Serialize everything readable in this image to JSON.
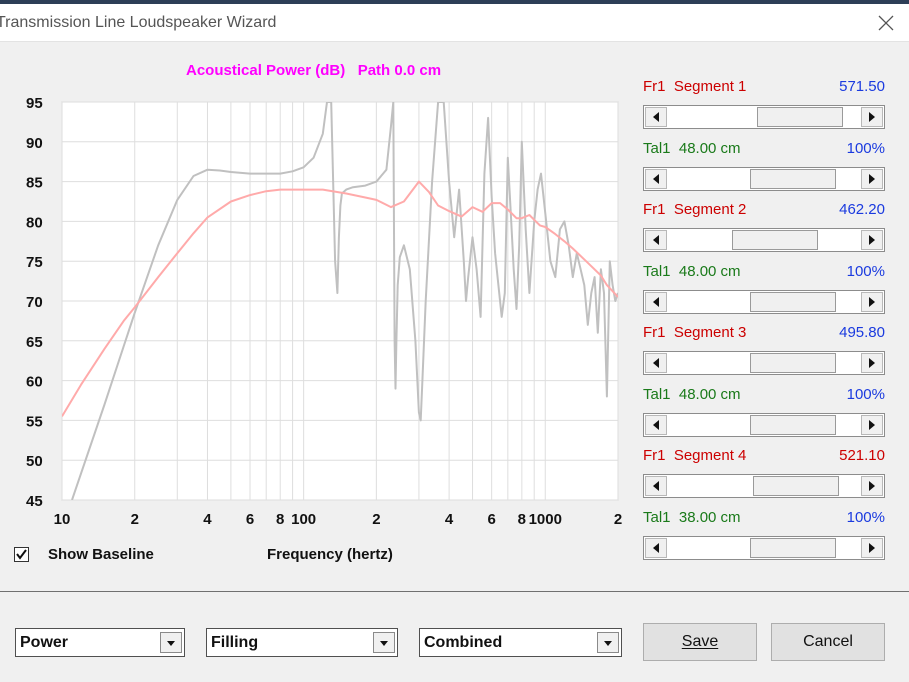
{
  "window": {
    "title": "Transmission Line Loudspeaker Wizard"
  },
  "chart_data": {
    "type": "line",
    "title": "Acoustical Power (dB)   Path 0.0 cm",
    "xlabel": "Frequency (hertz)",
    "ylabel": "",
    "x_scale": "log",
    "xlim": [
      10,
      2000
    ],
    "ylim": [
      45,
      95
    ],
    "x_tick_labels": [
      "10",
      "2",
      "4",
      "6",
      "8",
      "100",
      "2",
      "4",
      "6",
      "8",
      "1000",
      "2"
    ],
    "y_tick_labels": [
      "95",
      "90",
      "85",
      "80",
      "75",
      "70",
      "65",
      "60",
      "55",
      "50",
      "45"
    ],
    "grid": true,
    "series": [
      {
        "color": "#ffaaaa",
        "x": [
          10,
          12,
          15,
          18,
          20,
          25,
          30,
          35,
          40,
          50,
          60,
          70,
          80,
          90,
          100,
          120,
          150,
          180,
          200,
          230,
          260,
          300,
          330,
          360,
          400,
          450,
          500,
          550,
          600,
          650,
          700,
          760,
          800,
          860,
          900,
          950,
          1000,
          1100,
          1200,
          1300,
          1500,
          1700,
          1800,
          2000
        ],
        "y": [
          55.5,
          59.5,
          64,
          67.5,
          69.2,
          73,
          76,
          78.5,
          80.5,
          82.5,
          83.3,
          83.8,
          84,
          84,
          84,
          84,
          83.5,
          83,
          82.7,
          81.8,
          82.5,
          85,
          83.7,
          82,
          81.3,
          80.6,
          81.8,
          81.2,
          82.3,
          82.3,
          81.5,
          80.4,
          80.4,
          80.8,
          80.2,
          79.5,
          79.3,
          78.4,
          77.5,
          76.6,
          74.8,
          73.2,
          72,
          70.5
        ]
      },
      {
        "color": "#c0c0c0",
        "x": [
          11,
          15,
          20,
          25,
          30,
          35,
          40,
          45,
          50,
          60,
          70,
          80,
          90,
          100,
          110,
          120,
          125,
          130,
          135,
          138,
          140,
          142,
          144,
          150,
          160,
          180,
          200,
          220,
          230,
          235,
          238,
          240,
          242,
          245,
          250,
          260,
          275,
          290,
          300,
          305,
          310,
          320,
          340,
          360,
          380,
          400,
          420,
          440,
          460,
          470,
          480,
          500,
          520,
          540,
          560,
          580,
          600,
          620,
          640,
          660,
          680,
          700,
          720,
          740,
          760,
          780,
          800,
          830,
          860,
          900,
          930,
          960,
          1000,
          1050,
          1100,
          1150,
          1200,
          1250,
          1300,
          1350,
          1400,
          1450,
          1500,
          1550,
          1600,
          1650,
          1700,
          1750,
          1800,
          1850,
          1900,
          1950,
          2000
        ],
        "y": [
          45,
          57,
          68.5,
          77,
          82.7,
          85.7,
          86.5,
          86.4,
          86.2,
          86,
          86,
          86,
          86.3,
          86.8,
          88,
          91,
          95,
          95,
          75,
          71,
          78,
          82,
          83.5,
          84,
          84.3,
          84.5,
          85,
          86.5,
          92,
          95,
          65,
          59,
          65,
          72,
          75.5,
          77,
          74,
          65,
          56,
          55,
          60,
          70,
          85,
          95,
          95,
          85,
          78,
          84,
          75,
          70,
          73,
          78,
          74,
          68,
          86,
          93,
          83,
          76,
          72,
          68,
          71,
          88,
          81,
          74,
          69,
          77,
          90,
          79,
          71,
          80,
          84,
          86,
          81,
          75,
          73,
          79,
          80,
          77,
          73,
          76,
          74,
          72,
          67,
          71,
          73,
          66,
          74,
          71,
          58,
          75,
          72,
          70,
          71
        ]
      }
    ]
  },
  "baseline": {
    "checked": true,
    "label": "Show Baseline"
  },
  "segments": [
    {
      "label": "Fr1  Segment 1",
      "value": "571.50",
      "color": "#cc0000",
      "value_color": "#1a3adf",
      "thumb_left_pct": 0.47
    },
    {
      "label": "Tal1  48.00 cm",
      "value": "100%",
      "color": "#1a7a1a",
      "value_color": "#1a3adf",
      "thumb_left_pct": 0.43
    },
    {
      "label": "Fr1  Segment 2",
      "value": "462.20",
      "color": "#cc0000",
      "value_color": "#1a3adf",
      "thumb_left_pct": 0.34
    },
    {
      "label": "Tal1  48.00 cm",
      "value": "100%",
      "color": "#1a7a1a",
      "value_color": "#1a3adf",
      "thumb_left_pct": 0.43
    },
    {
      "label": "Fr1  Segment 3",
      "value": "495.80",
      "color": "#cc0000",
      "value_color": "#1a3adf",
      "thumb_left_pct": 0.43
    },
    {
      "label": "Tal1  48.00 cm",
      "value": "100%",
      "color": "#1a7a1a",
      "value_color": "#1a3adf",
      "thumb_left_pct": 0.43
    },
    {
      "label": "Fr1  Segment 4",
      "value": "521.10",
      "color": "#cc0000",
      "value_color": "#cc0000",
      "thumb_left_pct": 0.45
    },
    {
      "label": "Tal1  38.00 cm",
      "value": "100%",
      "color": "#1a7a1a",
      "value_color": "#1a3adf",
      "thumb_left_pct": 0.43
    }
  ],
  "dropdowns": [
    {
      "value": "Power"
    },
    {
      "value": "Filling"
    },
    {
      "value": "Combined"
    }
  ],
  "buttons": {
    "save": "Save",
    "cancel": "Cancel"
  }
}
